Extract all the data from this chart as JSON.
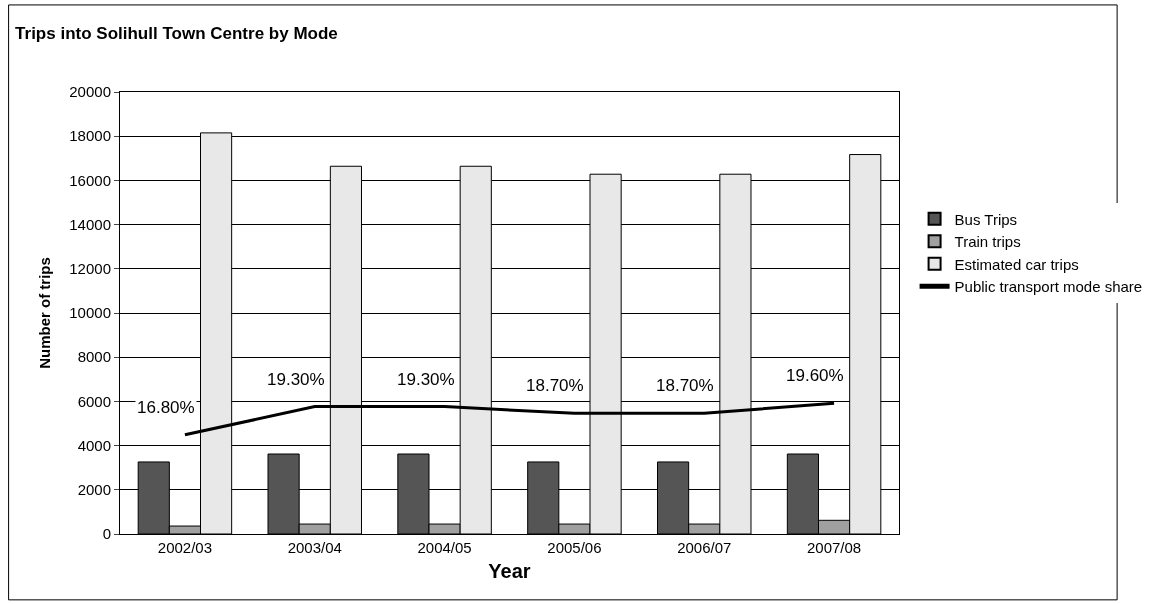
{
  "chart_data": {
    "type": "bar",
    "title": "Trips into Solihull Town Centre by Mode",
    "xlabel": "Year",
    "ylabel": "Number of trips",
    "categories": [
      "2002/03",
      "2003/04",
      "2004/05",
      "2005/06",
      "2006/07",
      "2007/08"
    ],
    "series": [
      {
        "name": "Bus Trips",
        "color": "#555555",
        "values": [
          3260,
          3620,
          3620,
          3260,
          3260,
          3620
        ]
      },
      {
        "name": "Train trips",
        "color": "#a0a0a0",
        "values": [
          360,
          450,
          450,
          450,
          450,
          620
        ]
      },
      {
        "name": "Estimated car trips",
        "color": "#e8e8e8",
        "values": [
          18150,
          16640,
          16640,
          16280,
          16280,
          17170
        ]
      },
      {
        "name": "Public transport mode share",
        "type": "line",
        "axis": "y2",
        "color": "#000000",
        "values": [
          16.8,
          19.3,
          19.3,
          18.7,
          18.7,
          19.6
        ],
        "value_labels": [
          "16.80%",
          "19.30%",
          "19.30%",
          "18.70%",
          "18.70%",
          "19.60%"
        ]
      }
    ],
    "ylim": [
      0,
      20000
    ],
    "yticks": [
      0,
      2000,
      4000,
      6000,
      8000,
      10000,
      12000,
      14000,
      16000,
      18000,
      20000
    ],
    "y2lim": [
      8,
      47.2
    ],
    "grid": "y",
    "legend": "right",
    "line_style": "solid"
  }
}
